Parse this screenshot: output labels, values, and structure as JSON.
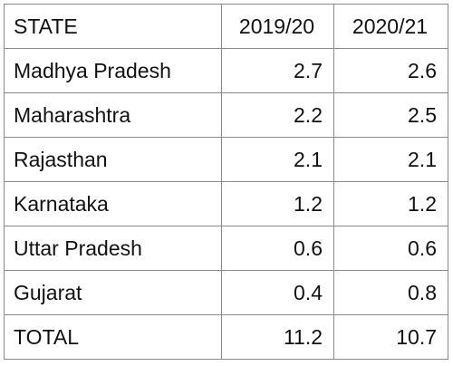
{
  "table": {
    "headers": [
      "STATE",
      "2019/20",
      "2020/21"
    ],
    "rows": [
      {
        "state": "Madhya Pradesh",
        "y2019_20": "2.7",
        "y2020_21": "2.6"
      },
      {
        "state": "Maharashtra",
        "y2019_20": "2.2",
        "y2020_21": "2.5"
      },
      {
        "state": "Rajasthan",
        "y2019_20": "2.1",
        "y2020_21": "2.1"
      },
      {
        "state": "Karnataka",
        "y2019_20": "1.2",
        "y2020_21": "1.2"
      },
      {
        "state": "Uttar Pradesh",
        "y2019_20": "0.6",
        "y2020_21": "0.6"
      },
      {
        "state": "Gujarat",
        "y2019_20": "0.4",
        "y2020_21": "0.8"
      }
    ],
    "total": {
      "state": "TOTAL",
      "y2019_20": "11.2",
      "y2020_21": "10.7"
    }
  },
  "colors": {
    "border": "#8a8a8a",
    "text": "#111111",
    "background": "#ffffff"
  }
}
